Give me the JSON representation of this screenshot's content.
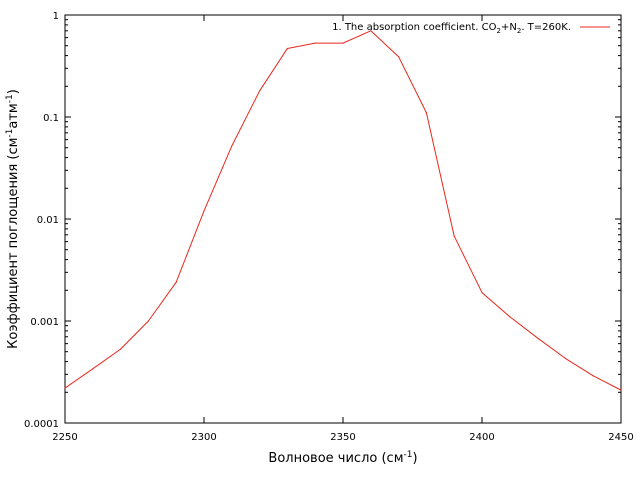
{
  "chart_data": {
    "type": "line",
    "title": "",
    "xlabel": {
      "text": "Волновое число (см",
      "sup": "-1",
      "tail": ")"
    },
    "ylabel": {
      "parts": [
        {
          "t": "Коэффициент поглощения (см"
        },
        {
          "t": "-1",
          "sup": true
        },
        {
          "t": "атм"
        },
        {
          "t": "-1",
          "sup": true
        },
        {
          "t": ")"
        }
      ]
    },
    "xlim": [
      2250,
      2450
    ],
    "ylim": [
      0.0001,
      1
    ],
    "yscale": "log",
    "grid": false,
    "legend_position": "top-right",
    "x_ticks": [
      {
        "value": 2250,
        "label": "2250"
      },
      {
        "value": 2300,
        "label": "2300"
      },
      {
        "value": 2350,
        "label": "2350"
      },
      {
        "value": 2400,
        "label": "2400"
      },
      {
        "value": 2450,
        "label": "2450"
      }
    ],
    "y_ticks": [
      {
        "value": 0.0001,
        "label": "0.0001"
      },
      {
        "value": 0.001,
        "label": "0.001"
      },
      {
        "value": 0.01,
        "label": "0.01"
      },
      {
        "value": 0.1,
        "label": "0.1"
      },
      {
        "value": 1,
        "label": "1"
      }
    ],
    "series": [
      {
        "name": "1. The absorption coefficient. CO2+N2. T=260K.",
        "legend_parts": [
          {
            "t": "1. The absorption coefficient. CO"
          },
          {
            "t": "2",
            "sub": true
          },
          {
            "t": "+N"
          },
          {
            "t": "2",
            "sub": true
          },
          {
            "t": ". T=260K."
          }
        ],
        "color": "#e8281c",
        "points": [
          [
            2250,
            0.00022
          ],
          [
            2260,
            0.00034
          ],
          [
            2270,
            0.00053
          ],
          [
            2280,
            0.001
          ],
          [
            2290,
            0.0024
          ],
          [
            2300,
            0.012
          ],
          [
            2310,
            0.052
          ],
          [
            2320,
            0.18
          ],
          [
            2330,
            0.47
          ],
          [
            2340,
            0.53
          ],
          [
            2350,
            0.53
          ],
          [
            2360,
            0.7
          ],
          [
            2370,
            0.39
          ],
          [
            2380,
            0.11
          ],
          [
            2390,
            0.0068
          ],
          [
            2400,
            0.0019
          ],
          [
            2410,
            0.0011
          ],
          [
            2420,
            0.00068
          ],
          [
            2430,
            0.00043
          ],
          [
            2440,
            0.00029
          ],
          [
            2450,
            0.00021
          ]
        ]
      }
    ]
  }
}
